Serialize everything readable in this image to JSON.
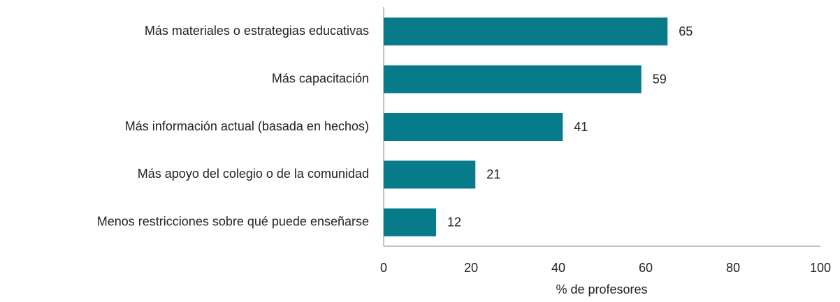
{
  "chart_data": {
    "type": "hbar",
    "categories": [
      "Más materiales o estrategias educativas",
      "Más capacitación",
      "Más información actual (basada en hechos)",
      "Más apoyo del colegio o de la comunidad",
      "Menos restricciones sobre qué puede enseñarse"
    ],
    "values": [
      65,
      59,
      41,
      21,
      12
    ],
    "color": "#077b8a",
    "xlabel": "% de profesores",
    "xlim": [
      0,
      100
    ],
    "xticks": [
      0,
      20,
      40,
      60,
      80,
      100
    ],
    "grid": false
  }
}
